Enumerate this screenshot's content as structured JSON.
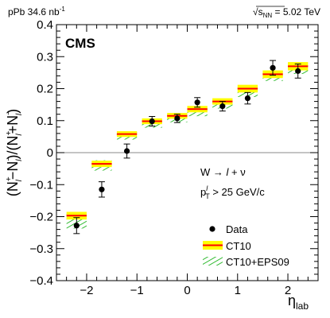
{
  "header": {
    "left": "pPb 34.6 nb",
    "left_sup": "-1",
    "right_sqrt": "√",
    "right_s": "s",
    "right_sub": "NN",
    "right_value": " = 5.02 TeV"
  },
  "experiment_label": "CMS",
  "conditions": {
    "process_w": "W → ",
    "process_l": "l",
    "process_rest": " + ν",
    "cut_p": "p",
    "cut_sup": "l",
    "cut_sub": "T",
    "cut_rest": " > 25 GeV/c"
  },
  "legend": {
    "data": "Data",
    "ct10": "CT10",
    "eps09": "CT10+EPS09"
  },
  "colors": {
    "data": "#000000",
    "ct10_band": "#ffff00",
    "ct10_line": "#ff0000",
    "eps09_hatch": "#00aa00",
    "zero_line": "#888888"
  },
  "chart_data": {
    "type": "scatter",
    "xlabel_base": "η",
    "xlabel_sub": "lab",
    "ylabel_parts": {
      "open": "(N",
      "sup1": "+",
      "sub1": "l",
      "mid1": "−N",
      "sup2": "−",
      "sub2": "l",
      "mid2": ")/(N",
      "sup3": "+",
      "sub3": "l",
      "mid3": "+N",
      "sup4": "−",
      "sub4": "l",
      "close": ")"
    },
    "xlim": [
      -2.6,
      2.6
    ],
    "ylim": [
      -0.4,
      0.4
    ],
    "x_ticks": [
      -2,
      -1,
      0,
      1,
      2
    ],
    "x_tick_labels": [
      "−2",
      "−1",
      "0",
      "1",
      "2"
    ],
    "y_ticks": [
      -0.4,
      -0.3,
      -0.2,
      -0.1,
      0,
      0.1,
      0.2,
      0.3,
      0.4
    ],
    "y_tick_labels": [
      "−0.4",
      "−0.3",
      "−0.2",
      "−0.1",
      "0",
      "0.1",
      "0.2",
      "0.3",
      "0.4"
    ],
    "bin_half_width": 0.2,
    "series": [
      {
        "name": "Data",
        "x": [
          -2.2,
          -1.7,
          -1.2,
          -0.7,
          -0.2,
          0.2,
          0.7,
          1.2,
          1.7,
          2.2
        ],
        "y": [
          -0.228,
          -0.115,
          0.005,
          0.098,
          0.107,
          0.157,
          0.145,
          0.17,
          0.265,
          0.255
        ],
        "err": [
          0.025,
          0.024,
          0.022,
          0.015,
          0.013,
          0.015,
          0.015,
          0.018,
          0.023,
          0.022
        ]
      },
      {
        "name": "CT10",
        "x": [
          -2.2,
          -1.7,
          -1.2,
          -0.7,
          -0.2,
          0.2,
          0.7,
          1.2,
          1.7,
          2.2
        ],
        "y": [
          -0.197,
          -0.035,
          0.058,
          0.098,
          0.115,
          0.136,
          0.16,
          0.2,
          0.245,
          0.27
        ],
        "err": [
          0.012,
          0.01,
          0.009,
          0.009,
          0.009,
          0.01,
          0.01,
          0.012,
          0.012,
          0.013
        ]
      },
      {
        "name": "CT10+EPS09",
        "x": [
          -2.2,
          -1.7,
          -1.2,
          -0.7,
          -0.2,
          0.2,
          0.7,
          1.2,
          1.7,
          2.2
        ],
        "y": [
          -0.212,
          -0.04,
          0.053,
          0.09,
          0.107,
          0.126,
          0.152,
          0.19,
          0.24,
          0.264
        ],
        "err": [
          0.025,
          0.016,
          0.012,
          0.012,
          0.012,
          0.012,
          0.014,
          0.016,
          0.016,
          0.018
        ]
      }
    ]
  }
}
